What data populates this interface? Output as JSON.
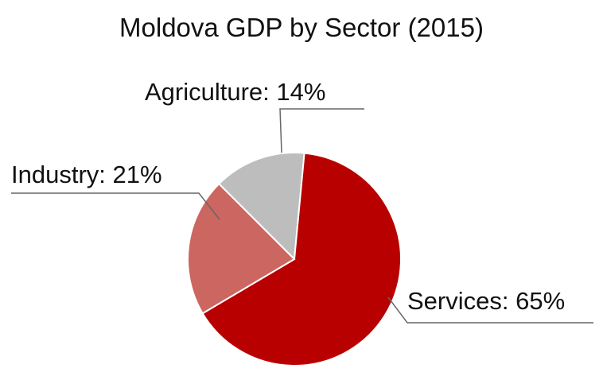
{
  "chart_data": {
    "type": "pie",
    "title": "Moldova GDP by Sector (2015)",
    "slices": [
      {
        "name": "Agriculture",
        "value": 14,
        "label": "Agriculture: 14%",
        "color": "#bdbdbd"
      },
      {
        "name": "Services",
        "value": 65,
        "label": "Services: 65%",
        "color": "#b90000"
      },
      {
        "name": "Industry",
        "value": 21,
        "label": "Industry: 21%",
        "color": "#cc6660"
      }
    ],
    "legend": "none"
  }
}
